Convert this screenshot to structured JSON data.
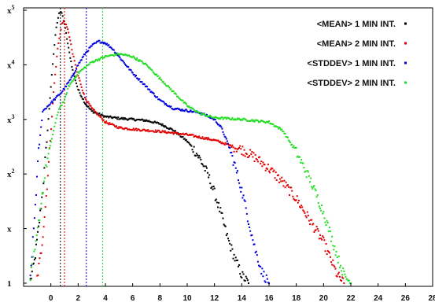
{
  "chart_data": {
    "type": "scatter",
    "title": "",
    "xlabel": "",
    "ylabel": "",
    "xlim": [
      -2,
      28
    ],
    "ylim": [
      0,
      5
    ],
    "y_scale": "log",
    "grid": false,
    "legend_position": "top-right",
    "x_ticks": [
      "0",
      "2",
      "4",
      "6",
      "8",
      "10",
      "12",
      "14",
      "16",
      "18",
      "20",
      "22",
      "24",
      "26",
      "28"
    ],
    "y_ticks": [
      {
        "base": "1",
        "exp": ""
      },
      {
        "base": "x",
        "exp": ""
      },
      {
        "base": "x",
        "exp": "2"
      },
      {
        "base": "x",
        "exp": "3"
      },
      {
        "base": "x",
        "exp": "4"
      },
      {
        "base": "x",
        "exp": "5"
      }
    ],
    "series": [
      {
        "name": "<MEAN> 1 MIN INT.",
        "color": "#000000",
        "marker_x": 0.7,
        "points": [
          [
            -1.5,
            0.05
          ],
          [
            -1.2,
            0.4
          ],
          [
            -0.9,
            1.0
          ],
          [
            -0.6,
            1.7
          ],
          [
            -0.3,
            2.6
          ],
          [
            0.0,
            3.6
          ],
          [
            0.2,
            4.2
          ],
          [
            0.4,
            4.7
          ],
          [
            0.6,
            4.95
          ],
          [
            0.8,
            4.95
          ],
          [
            1.0,
            4.75
          ],
          [
            1.3,
            4.3
          ],
          [
            1.6,
            3.9
          ],
          [
            2.0,
            3.55
          ],
          [
            2.5,
            3.3
          ],
          [
            3.0,
            3.15
          ],
          [
            4.0,
            3.05
          ],
          [
            5.0,
            3.02
          ],
          [
            6.0,
            3.0
          ],
          [
            7.0,
            2.98
          ],
          [
            8.0,
            2.92
          ],
          [
            9.0,
            2.8
          ],
          [
            10.0,
            2.6
          ],
          [
            10.5,
            2.45
          ],
          [
            11.0,
            2.25
          ],
          [
            11.5,
            2.0
          ],
          [
            12.0,
            1.65
          ],
          [
            12.5,
            1.25
          ],
          [
            13.0,
            0.8
          ],
          [
            13.5,
            0.45
          ],
          [
            14.0,
            0.15
          ],
          [
            14.5,
            0.0
          ]
        ]
      },
      {
        "name": "<MEAN> 2 MIN INT.",
        "color": "#e00000",
        "marker_x": 1.0,
        "points": [
          [
            -1.0,
            0.1
          ],
          [
            -0.7,
            0.6
          ],
          [
            -0.4,
            1.4
          ],
          [
            -0.1,
            2.4
          ],
          [
            0.2,
            3.5
          ],
          [
            0.5,
            4.3
          ],
          [
            0.8,
            4.75
          ],
          [
            1.0,
            4.8
          ],
          [
            1.3,
            4.6
          ],
          [
            1.6,
            4.2
          ],
          [
            2.0,
            3.8
          ],
          [
            2.5,
            3.4
          ],
          [
            3.0,
            3.2
          ],
          [
            4.0,
            2.95
          ],
          [
            5.0,
            2.85
          ],
          [
            6.0,
            2.82
          ],
          [
            8.0,
            2.78
          ],
          [
            10.0,
            2.72
          ],
          [
            12.0,
            2.62
          ],
          [
            14.0,
            2.45
          ],
          [
            15.0,
            2.3
          ],
          [
            16.0,
            2.1
          ],
          [
            17.0,
            1.85
          ],
          [
            18.0,
            1.55
          ],
          [
            19.0,
            1.15
          ],
          [
            20.0,
            0.75
          ],
          [
            20.5,
            0.45
          ],
          [
            21.0,
            0.15
          ],
          [
            21.5,
            0.0
          ]
        ]
      },
      {
        "name": "<STDDEV> 1 MIN INT.",
        "color": "#0000dd",
        "marker_x": 2.6,
        "points": [
          [
            -1.5,
            0.1
          ],
          [
            -1.2,
            1.2
          ],
          [
            -0.9,
            2.4
          ],
          [
            -0.6,
            3.15
          ],
          [
            0.0,
            3.3
          ],
          [
            0.8,
            3.5
          ],
          [
            1.5,
            3.75
          ],
          [
            2.0,
            4.0
          ],
          [
            2.5,
            4.2
          ],
          [
            3.0,
            4.35
          ],
          [
            3.5,
            4.43
          ],
          [
            4.0,
            4.4
          ],
          [
            4.5,
            4.3
          ],
          [
            5.0,
            4.15
          ],
          [
            6.0,
            3.85
          ],
          [
            7.0,
            3.6
          ],
          [
            8.0,
            3.35
          ],
          [
            9.0,
            3.2
          ],
          [
            10.0,
            3.16
          ],
          [
            11.0,
            3.12
          ],
          [
            12.0,
            3.0
          ],
          [
            12.5,
            2.85
          ],
          [
            13.0,
            2.55
          ],
          [
            13.5,
            2.15
          ],
          [
            14.0,
            1.7
          ],
          [
            14.5,
            1.15
          ],
          [
            15.0,
            0.6
          ],
          [
            15.5,
            0.2
          ],
          [
            16.0,
            0.0
          ]
        ]
      },
      {
        "name": "<STDDEV> 2 MIN INT.",
        "color": "#22dd22",
        "marker_x": 3.8,
        "points": [
          [
            -1.5,
            0.1
          ],
          [
            -1.1,
            0.7
          ],
          [
            -0.7,
            1.5
          ],
          [
            -0.3,
            2.2
          ],
          [
            0.2,
            2.8
          ],
          [
            0.6,
            3.2
          ],
          [
            1.0,
            3.35
          ],
          [
            1.3,
            3.6
          ],
          [
            2.0,
            3.85
          ],
          [
            3.0,
            4.05
          ],
          [
            4.0,
            4.15
          ],
          [
            5.0,
            4.2
          ],
          [
            6.0,
            4.15
          ],
          [
            7.0,
            4.0
          ],
          [
            8.0,
            3.75
          ],
          [
            9.0,
            3.5
          ],
          [
            10.0,
            3.25
          ],
          [
            11.0,
            3.1
          ],
          [
            12.0,
            3.03
          ],
          [
            14.0,
            3.0
          ],
          [
            16.0,
            2.95
          ],
          [
            17.0,
            2.8
          ],
          [
            18.0,
            2.4
          ],
          [
            19.0,
            1.9
          ],
          [
            20.0,
            1.3
          ],
          [
            20.5,
            0.9
          ],
          [
            21.0,
            0.5
          ],
          [
            21.5,
            0.15
          ],
          [
            22.0,
            0.0
          ]
        ]
      }
    ]
  }
}
